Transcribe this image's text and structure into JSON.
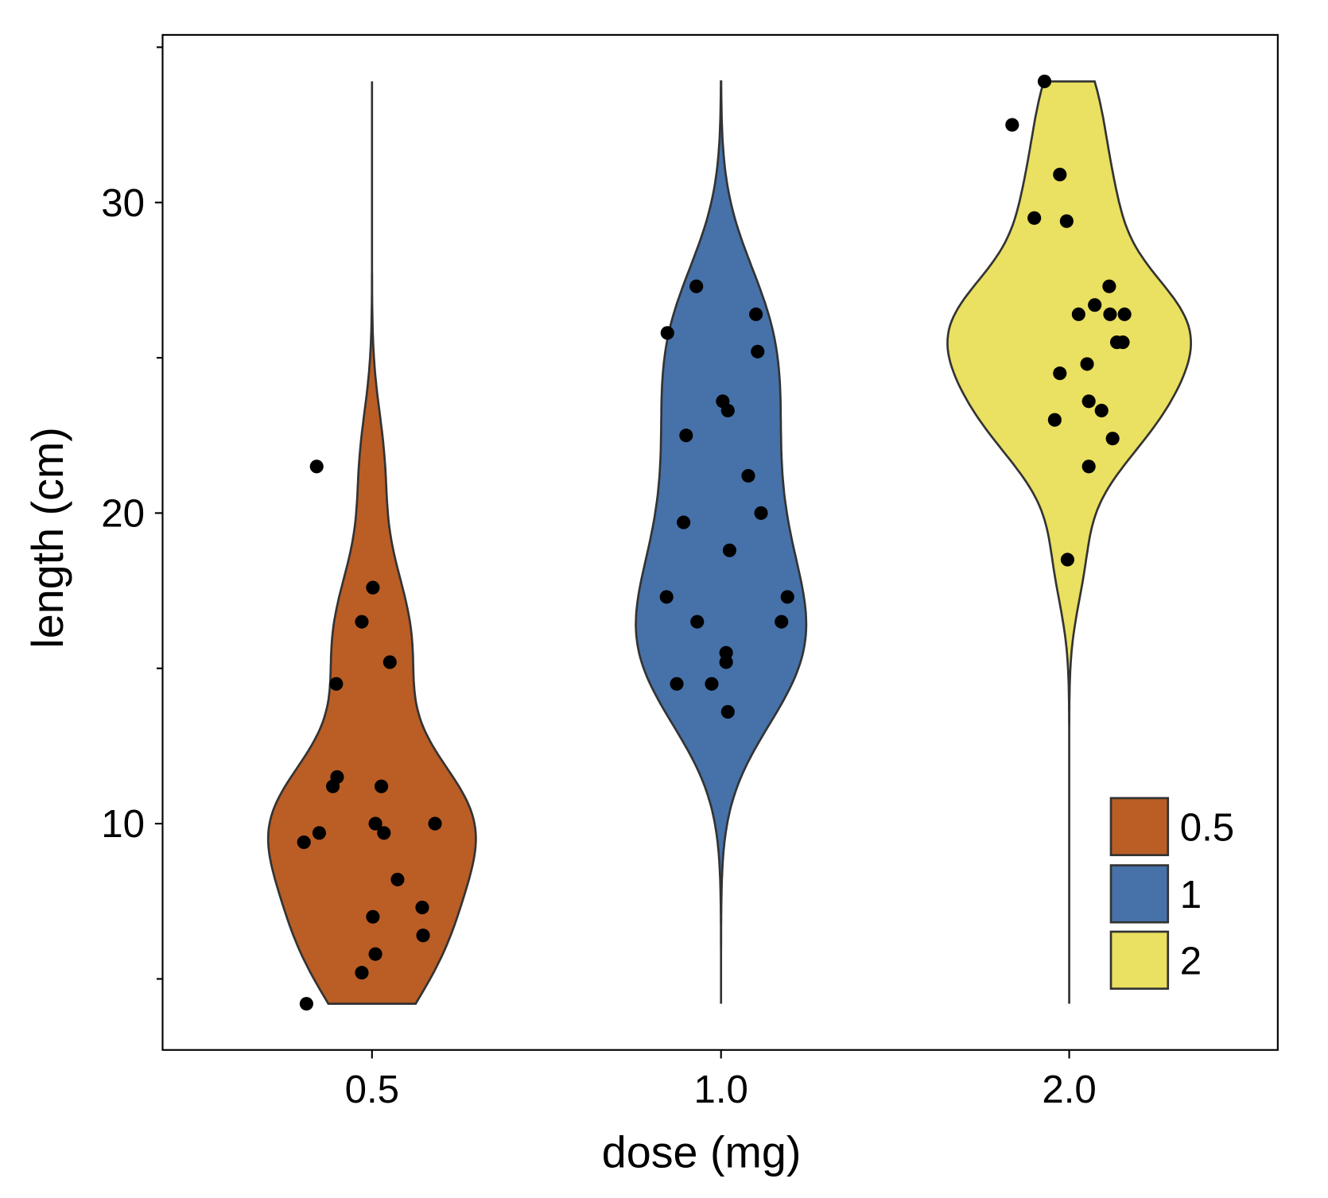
{
  "chart_data": {
    "type": "violin",
    "title": "",
    "xlabel": "dose (mg)",
    "ylabel": "length (cm)",
    "x_tick_labels": [
      "0.5",
      "1.0",
      "2.0"
    ],
    "y_ticks": [
      10,
      20,
      30
    ],
    "y_tick_labels": [
      "10",
      "20",
      "30"
    ],
    "y_minor_ticks": [
      5,
      15,
      25,
      35
    ],
    "ylim": [
      2.7,
      35.4
    ],
    "grid": false,
    "legend": {
      "placement": "bottom-right",
      "entries": [
        "0.5",
        "1",
        "2"
      ]
    },
    "series": [
      {
        "name": "0.5",
        "color": "#BA5E26",
        "values": [
          4.2,
          21.5,
          17.6,
          16.5,
          15.2,
          14.5,
          11.5,
          11.2,
          11.2,
          10,
          10,
          9.7,
          9.7,
          9.4,
          8.2,
          7.3,
          7,
          6.4,
          5.8,
          5.2
        ]
      },
      {
        "name": "1",
        "color": "#4672A9",
        "values": [
          27.3,
          25.8,
          26.4,
          25.2,
          23.6,
          23.3,
          22.5,
          21.2,
          20,
          19.7,
          18.8,
          17.3,
          17.3,
          16.5,
          16.5,
          15.5,
          15.2,
          14.5,
          14.5,
          13.6
        ]
      },
      {
        "name": "2",
        "color": "#EAE061",
        "values": [
          33.9,
          32.5,
          30.9,
          29.5,
          29.4,
          27.3,
          26.7,
          26.4,
          26.4,
          26.4,
          25.5,
          25.5,
          24.8,
          24.5,
          23.6,
          23.3,
          23.0,
          22.4,
          21.5,
          18.5
        ]
      }
    ],
    "outline_color": "#333333",
    "point_color": "#000000"
  }
}
